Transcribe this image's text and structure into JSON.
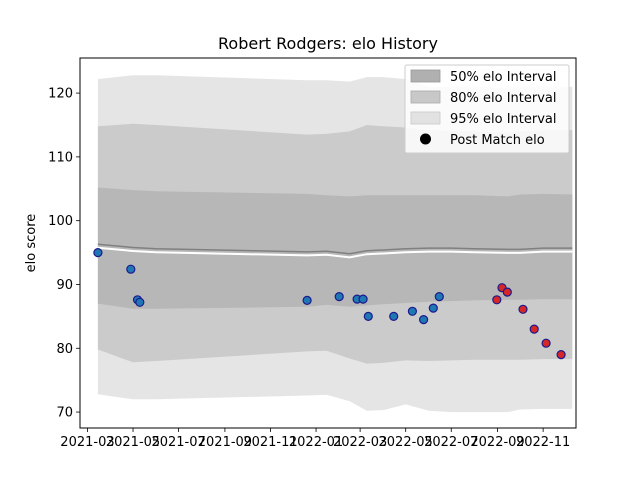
{
  "chart_data": {
    "type": "line",
    "title": "Robert Rodgers: elo History",
    "xlabel": "",
    "ylabel": "elo score",
    "xlim": [
      "2021-02-19",
      "2022-12-15"
    ],
    "ylim": [
      67.5,
      125.5
    ],
    "x_ticks": [
      "2021-03",
      "2021-05",
      "2021-07",
      "2021-09",
      "2021-11",
      "2022-01",
      "2022-03",
      "2022-05",
      "2022-07",
      "2022-09",
      "2022-11"
    ],
    "y_ticks": [
      70,
      80,
      90,
      100,
      110,
      120
    ],
    "grid": false,
    "legend_position": "top-right",
    "legend": [
      "50% elo Interval",
      "80% elo Interval",
      "95% elo Interval",
      "Post Match elo"
    ],
    "colors": {
      "band_50": "#b0b0b0",
      "band_80": "#c8c8c8",
      "band_95": "#e2e2e2",
      "mean_line": "#808080",
      "mean_highlight": "#ffffff",
      "point_fill_early": "#1f77b4",
      "point_fill_late": "#d62728",
      "point_edge": "#1a1a8c"
    },
    "bands": {
      "dates": [
        "2021-03-15",
        "2021-05-01",
        "2021-06-01",
        "2021-12-20",
        "2022-01-15",
        "2022-02-15",
        "2022-03-10",
        "2022-04-01",
        "2022-05-01",
        "2022-06-01",
        "2022-07-01",
        "2022-08-01",
        "2022-09-15",
        "2022-10-01",
        "2022-11-01",
        "2022-12-10"
      ],
      "mean": [
        96.3,
        95.8,
        95.6,
        95.1,
        95.2,
        94.8,
        95.3,
        95.4,
        95.6,
        95.7,
        95.7,
        95.6,
        95.5,
        95.5,
        95.7,
        95.7
      ],
      "p50_low": [
        87.0,
        86.2,
        86.2,
        86.5,
        86.8,
        86.5,
        86.7,
        86.9,
        87.1,
        87.3,
        87.4,
        87.5,
        87.6,
        87.6,
        87.7,
        87.7
      ],
      "p50_high": [
        105.2,
        104.8,
        104.6,
        104.2,
        104.0,
        103.8,
        104.0,
        104.0,
        104.0,
        104.0,
        104.0,
        104.0,
        103.8,
        104.1,
        104.2,
        104.1
      ],
      "p80_low": [
        79.8,
        77.8,
        78.0,
        79.5,
        79.6,
        78.4,
        77.6,
        77.7,
        78.1,
        78.0,
        78.1,
        78.2,
        78.2,
        78.2,
        78.3,
        78.3
      ],
      "p80_high": [
        114.8,
        115.2,
        115.0,
        113.5,
        113.6,
        114.0,
        115.0,
        114.8,
        114.6,
        114.2,
        114.1,
        114.0,
        113.8,
        114.0,
        114.2,
        114.2
      ],
      "p95_low": [
        72.8,
        72.0,
        72.0,
        72.6,
        72.7,
        71.7,
        70.2,
        70.3,
        71.2,
        70.2,
        70.0,
        70.0,
        70.0,
        70.4,
        70.5,
        70.5
      ],
      "p95_high": [
        122.2,
        122.8,
        122.8,
        122.0,
        122.0,
        121.8,
        122.5,
        122.5,
        122.2,
        121.0,
        121.0,
        121.0,
        120.8,
        121.0,
        121.0,
        121.0
      ]
    },
    "series": [
      {
        "name": "Post Match elo",
        "points": [
          {
            "x": "2021-03-15",
            "y": 95.0,
            "group": "early"
          },
          {
            "x": "2021-04-28",
            "y": 92.4,
            "group": "early"
          },
          {
            "x": "2021-05-07",
            "y": 87.6,
            "group": "early"
          },
          {
            "x": "2021-05-10",
            "y": 87.2,
            "group": "early"
          },
          {
            "x": "2021-12-20",
            "y": 87.5,
            "group": "early"
          },
          {
            "x": "2022-02-01",
            "y": 88.1,
            "group": "early"
          },
          {
            "x": "2022-02-25",
            "y": 87.7,
            "group": "early"
          },
          {
            "x": "2022-03-05",
            "y": 87.7,
            "group": "early"
          },
          {
            "x": "2022-03-12",
            "y": 85.0,
            "group": "early"
          },
          {
            "x": "2022-04-15",
            "y": 85.0,
            "group": "early"
          },
          {
            "x": "2022-05-10",
            "y": 85.8,
            "group": "early"
          },
          {
            "x": "2022-05-25",
            "y": 84.5,
            "group": "early"
          },
          {
            "x": "2022-06-07",
            "y": 86.3,
            "group": "early"
          },
          {
            "x": "2022-06-15",
            "y": 88.1,
            "group": "early"
          },
          {
            "x": "2022-08-31",
            "y": 87.6,
            "group": "late"
          },
          {
            "x": "2022-09-07",
            "y": 89.5,
            "group": "late"
          },
          {
            "x": "2022-09-14",
            "y": 88.8,
            "group": "late"
          },
          {
            "x": "2022-10-05",
            "y": 86.1,
            "group": "late"
          },
          {
            "x": "2022-10-20",
            "y": 83.0,
            "group": "late"
          },
          {
            "x": "2022-11-05",
            "y": 80.8,
            "group": "late"
          },
          {
            "x": "2022-11-25",
            "y": 79.0,
            "group": "late"
          }
        ]
      }
    ]
  }
}
